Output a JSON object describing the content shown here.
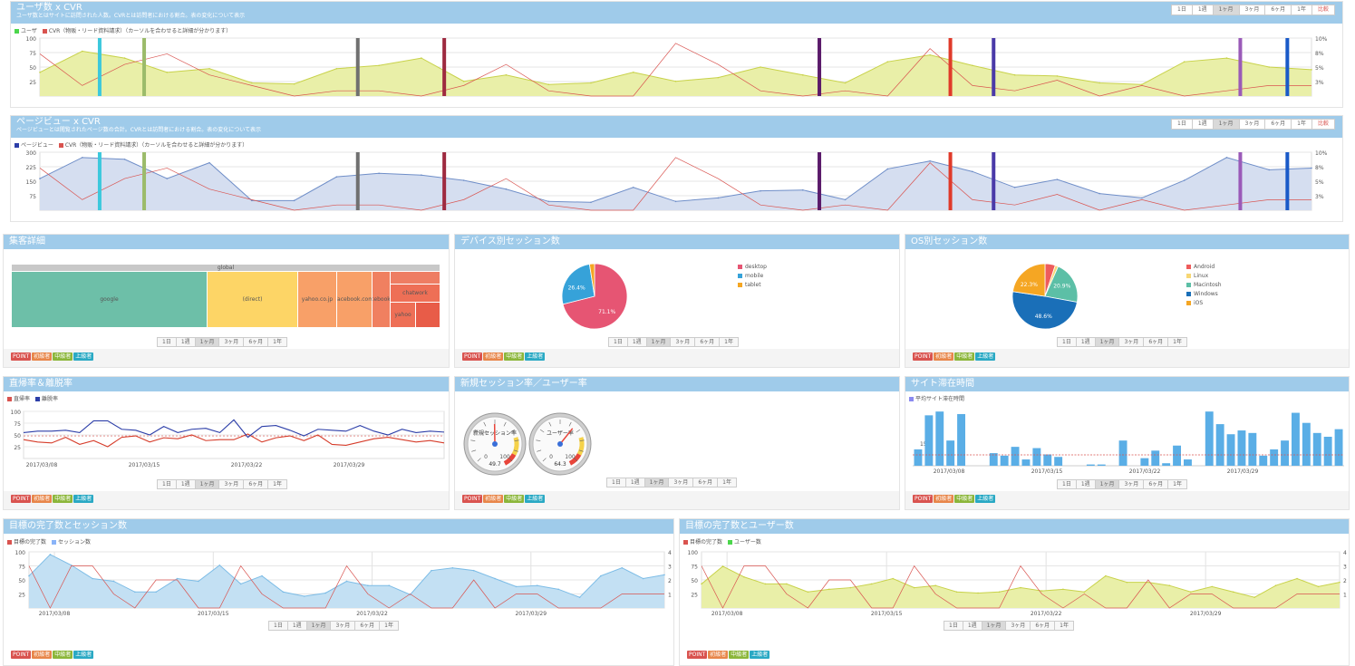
{
  "range_tabs": [
    "1日",
    "1週",
    "1ヶ月",
    "3ヶ月",
    "6ヶ月",
    "1年",
    "比較"
  ],
  "range_tabs_short": [
    "1日",
    "1週",
    "1ヶ月",
    "3ヶ月",
    "6ヶ月",
    "1年"
  ],
  "badges": [
    "POINT",
    "初級者",
    "中級者",
    "上級者"
  ],
  "users_cvr": {
    "title": "ユーザ数 x CVR",
    "subtitle": "ユーザ数とはサイトに訪問された人数。CVRとは訪問者における割合。表の変化について表示",
    "legend": [
      "ユーザ",
      "CVR（物販・リード資料請求）（カーソルを合わせると詳細が分かります）"
    ],
    "y_left": [
      "100",
      "75",
      "50",
      "25"
    ],
    "y_right": [
      "10%",
      "8%",
      "5%",
      "3%"
    ],
    "chart_data": {
      "type": "area",
      "x": [
        1,
        2,
        3,
        4,
        5,
        6,
        7,
        8,
        9,
        10,
        11,
        12,
        13,
        14,
        15,
        16,
        17,
        18,
        19,
        20,
        21,
        22,
        23,
        24,
        25,
        26,
        27,
        28,
        29,
        30,
        31
      ],
      "series": [
        {
          "name": "ユーザ",
          "values": [
            45,
            85,
            72,
            45,
            52,
            25,
            23,
            52,
            58,
            72,
            28,
            40,
            22,
            25,
            45,
            28,
            35,
            55,
            40,
            25,
            65,
            78,
            58,
            40,
            38,
            25,
            22,
            65,
            72,
            55,
            50
          ]
        },
        {
          "name": "CVR",
          "values": [
            8,
            2,
            6,
            8,
            4,
            2,
            0,
            1,
            1,
            0,
            2,
            6,
            1,
            0,
            0,
            10,
            6,
            1,
            0,
            1,
            0,
            9,
            2,
            1,
            3,
            0,
            2,
            0,
            1,
            2,
            2
          ]
        }
      ]
    }
  },
  "pv_cvr": {
    "title": "ページビュー x CVR",
    "subtitle": "ページビューとは閲覧されたページ数の合計。CVRとは訪問者における割合。表の変化について表示",
    "legend": [
      "ページビュー",
      "CVR（物販・リード資料請求）（カーソルを合わせると詳細が分かります）"
    ],
    "y_left": [
      "300",
      "225",
      "150",
      "75"
    ],
    "y_right": [
      "10%",
      "8%",
      "5%",
      "3%"
    ],
    "chart_data": {
      "type": "area",
      "x": [
        1,
        2,
        3,
        4,
        5,
        6,
        7,
        8,
        9,
        10,
        11,
        12,
        13,
        14,
        15,
        16,
        17,
        18,
        19,
        20,
        21,
        22,
        23,
        24,
        25,
        26,
        27,
        28,
        29,
        30,
        31
      ],
      "series": [
        {
          "name": "ページビュー",
          "values": [
            180,
            300,
            290,
            180,
            270,
            55,
            55,
            190,
            210,
            200,
            170,
            120,
            50,
            45,
            130,
            50,
            70,
            110,
            115,
            60,
            235,
            280,
            220,
            130,
            175,
            95,
            70,
            170,
            300,
            230,
            240
          ]
        },
        {
          "name": "CVR",
          "values": [
            8,
            2,
            6,
            8,
            4,
            2,
            0,
            1,
            1,
            0,
            2,
            6,
            1,
            0,
            0,
            10,
            6,
            1,
            0,
            1,
            0,
            9,
            2,
            1,
            3,
            0,
            2,
            0,
            1,
            2,
            2
          ]
        }
      ]
    }
  },
  "inflow": {
    "title": "集客詳細",
    "root": "global",
    "cells": [
      "google",
      "(direct)",
      "yahoo.co.jp",
      "facebook.com",
      "m.facebook.com",
      "chatwork",
      "yahoo"
    ]
  },
  "device": {
    "title": "デバイス別セッション数",
    "legend": [
      "desktop",
      "mobile",
      "tablet"
    ],
    "labels": [
      "71.1%",
      "26.4%"
    ],
    "chart_data": {
      "type": "pie",
      "categories": [
        "desktop",
        "mobile",
        "tablet"
      ],
      "values": [
        71.1,
        26.4,
        2.5
      ]
    }
  },
  "os": {
    "title": "OS別セッション数",
    "legend": [
      "Android",
      "Linux",
      "Macintosh",
      "Windows",
      "iOS"
    ],
    "labels": [
      "22.3%",
      "20.9%",
      "48.6%"
    ],
    "chart_data": {
      "type": "pie",
      "categories": [
        "Android",
        "Linux",
        "Macintosh",
        "Windows",
        "iOS"
      ],
      "values": [
        5,
        1.5,
        20.9,
        48.6,
        22.3
      ]
    }
  },
  "bounce": {
    "title": "直帰率＆離脱率",
    "legend": [
      "直帰率",
      "離脱率"
    ],
    "y": [
      "100",
      "75",
      "50",
      "25"
    ],
    "dates": [
      "2017/03/08",
      "2017/03/15",
      "2017/03/22",
      "2017/03/29"
    ],
    "chart_data": {
      "type": "line",
      "x": [
        1,
        2,
        3,
        4,
        5,
        6,
        7,
        8,
        9,
        10,
        11,
        12,
        13,
        14,
        15,
        16,
        17,
        18,
        19,
        20,
        21,
        22,
        23,
        24,
        25,
        26,
        27,
        28,
        29,
        30,
        31
      ],
      "series": [
        {
          "name": "直帰率",
          "values": [
            40,
            35,
            33,
            45,
            30,
            38,
            25,
            45,
            48,
            35,
            44,
            42,
            50,
            38,
            40,
            40,
            52,
            35,
            44,
            48,
            38,
            50,
            30,
            28,
            35,
            42,
            45,
            40,
            35,
            38,
            33
          ]
        },
        {
          "name": "離脱率",
          "values": [
            55,
            58,
            58,
            60,
            55,
            80,
            80,
            62,
            60,
            50,
            68,
            55,
            62,
            64,
            55,
            82,
            45,
            68,
            70,
            60,
            48,
            62,
            60,
            58,
            70,
            58,
            50,
            62,
            55,
            58,
            56
          ]
        }
      ]
    }
  },
  "newsession": {
    "title": "新規セッション率／ユーザー率",
    "gauge1": {
      "label": "新規セッション率",
      "value": "49.7"
    },
    "gauge2": {
      "label": "ユーザー率",
      "value": "64.3"
    }
  },
  "sitetime": {
    "title": "サイト滞在時間",
    "legend": [
      "平均サイト滞在時間"
    ],
    "y": [
      "150"
    ],
    "dates": [
      "2017/03/08",
      "2017/03/15",
      "2017/03/22",
      "2017/03/29"
    ],
    "chart_data": {
      "type": "bar",
      "x": [
        1,
        2,
        3,
        4,
        5,
        6,
        7,
        8,
        9,
        10,
        11,
        12,
        13,
        14,
        15,
        16,
        17,
        18,
        19,
        20,
        21,
        22,
        23,
        24,
        25,
        26,
        27,
        28,
        29,
        30,
        31,
        32,
        33,
        34,
        35,
        36,
        37,
        38,
        39,
        40
      ],
      "values": [
        130,
        400,
        430,
        200,
        410,
        0,
        0,
        100,
        80,
        150,
        50,
        140,
        90,
        70,
        0,
        0,
        10,
        10,
        0,
        200,
        0,
        60,
        120,
        20,
        160,
        50,
        0,
        430,
        330,
        250,
        280,
        260,
        80,
        130,
        200,
        420,
        340,
        260,
        230,
        290
      ]
    }
  },
  "goal_session": {
    "title": "目標の完了数とセッション数",
    "legend": [
      "目標の完了数",
      "セッション数"
    ],
    "y": [
      "100",
      "75",
      "50",
      "25"
    ],
    "y_right": [
      "4",
      "3",
      "2",
      "1"
    ],
    "dates": [
      "2017/03/08",
      "2017/03/15",
      "2017/03/22",
      "2017/03/29"
    ],
    "chart_data": {
      "type": "area",
      "x": [
        1,
        2,
        3,
        4,
        5,
        6,
        7,
        8,
        9,
        10,
        11,
        12,
        13,
        14,
        15,
        16,
        17,
        18,
        19,
        20,
        21,
        22,
        23,
        24,
        25,
        26,
        27,
        28,
        29,
        30,
        31
      ],
      "series": [
        {
          "name": "セッション数",
          "values": [
            60,
            100,
            80,
            55,
            50,
            30,
            30,
            55,
            50,
            80,
            45,
            60,
            30,
            22,
            28,
            50,
            42,
            42,
            25,
            70,
            75,
            70,
            55,
            40,
            42,
            35,
            20,
            60,
            75,
            55,
            62
          ]
        },
        {
          "name": "目標の完了数",
          "values": [
            3,
            0,
            3,
            3,
            1,
            0,
            2,
            2,
            0,
            0,
            3,
            1,
            0,
            0,
            0,
            3,
            1,
            0,
            1,
            0,
            0,
            2,
            0,
            1,
            1,
            0,
            0,
            0,
            1,
            1,
            1
          ]
        }
      ]
    }
  },
  "goal_user": {
    "title": "目標の完了数とユーザー数",
    "legend": [
      "目標の完了数",
      "ユーザー数"
    ],
    "y": [
      "100",
      "75",
      "50",
      "25"
    ],
    "y_right": [
      "4",
      "3",
      "2",
      "1"
    ],
    "dates": [
      "2017/03/08",
      "2017/03/15",
      "2017/03/22",
      "2017/03/29"
    ],
    "chart_data": {
      "type": "area",
      "x": [
        1,
        2,
        3,
        4,
        5,
        6,
        7,
        8,
        9,
        10,
        11,
        12,
        13,
        14,
        15,
        16,
        17,
        18,
        19,
        20,
        21,
        22,
        23,
        24,
        25,
        26,
        27,
        28,
        29,
        30,
        31
      ],
      "series": [
        {
          "name": "ユーザー数",
          "values": [
            45,
            78,
            58,
            45,
            45,
            30,
            35,
            38,
            45,
            55,
            38,
            42,
            30,
            28,
            30,
            38,
            32,
            35,
            30,
            60,
            48,
            48,
            42,
            30,
            40,
            30,
            20,
            42,
            55,
            40,
            48
          ]
        },
        {
          "name": "目標の完了数",
          "values": [
            3,
            0,
            3,
            3,
            1,
            0,
            2,
            2,
            0,
            0,
            3,
            1,
            0,
            0,
            0,
            3,
            1,
            0,
            1,
            0,
            0,
            2,
            0,
            1,
            1,
            0,
            0,
            0,
            1,
            1,
            1
          ]
        }
      ]
    }
  },
  "colors": {
    "header": "#9fcbea",
    "user_area": "#e9efa8",
    "user_line": "#c8d24a",
    "pv_area": "#d5def0",
    "pv_line": "#6f8ec8",
    "cvr": "#d9534f",
    "session_area": "#c3e0f3",
    "bar": "#5aaee6"
  }
}
